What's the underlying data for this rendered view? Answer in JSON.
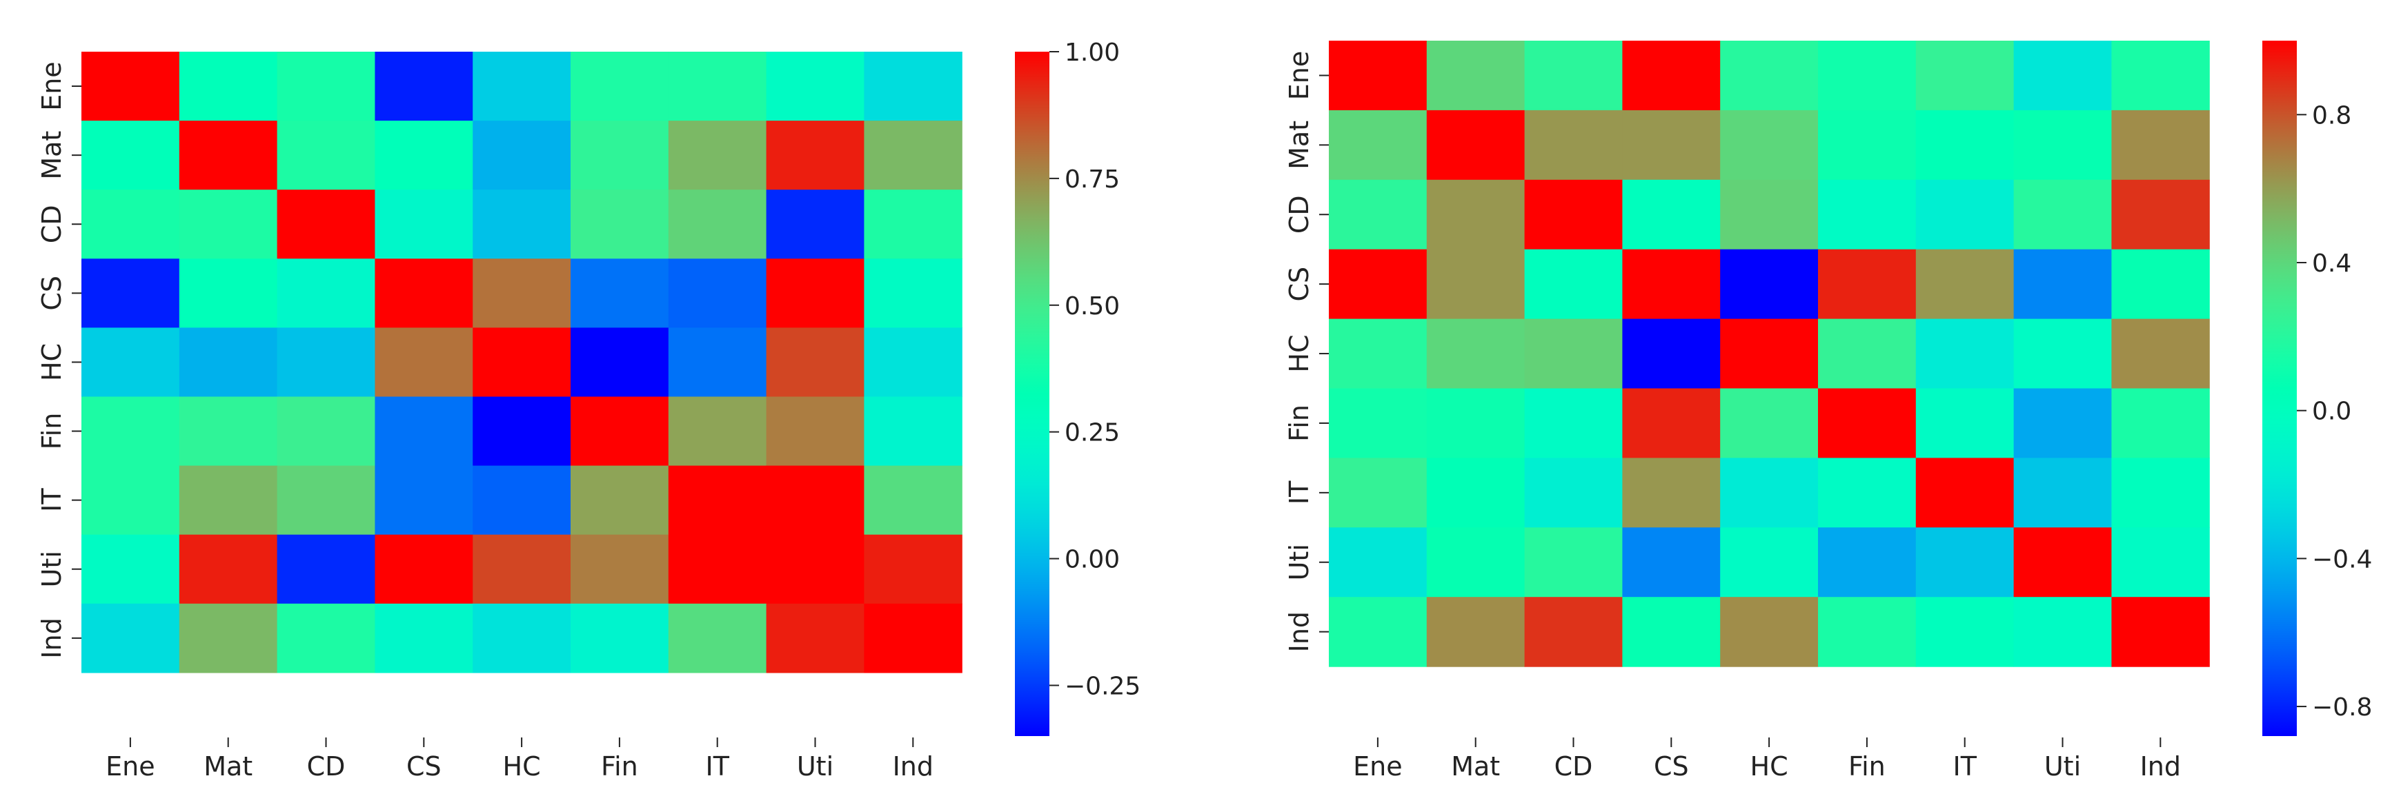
{
  "chart_data": [
    {
      "type": "heatmap",
      "title": "",
      "xlabel": "",
      "ylabel": "",
      "colormap": "rainbow",
      "vmin": -0.35,
      "vmax": 1.0,
      "x_labels": [
        "Ene",
        "Mat",
        "CD",
        "CS",
        "HC",
        "Fin",
        "IT",
        "Uti",
        "Ind"
      ],
      "y_labels": [
        "Ene",
        "Mat",
        "CD",
        "CS",
        "HC",
        "Fin",
        "IT",
        "Uti",
        "Ind"
      ],
      "colorbar_ticks": [
        1.0,
        0.75,
        0.5,
        0.25,
        0.0,
        -0.25
      ],
      "colorbar_tick_labels": [
        "1.00",
        "0.75",
        "0.50",
        "0.25",
        "0.00",
        "−0.25"
      ],
      "values": [
        [
          1.0,
          0.3,
          0.38,
          -0.3,
          0.05,
          0.4,
          0.4,
          0.25,
          0.1
        ],
        [
          0.3,
          1.0,
          0.4,
          0.3,
          -0.02,
          0.45,
          0.65,
          0.95,
          0.65
        ],
        [
          0.38,
          0.4,
          1.0,
          0.22,
          0.02,
          0.48,
          0.58,
          -0.28,
          0.4
        ],
        [
          -0.3,
          0.3,
          0.22,
          1.0,
          0.8,
          -0.15,
          -0.18,
          1.0,
          0.25
        ],
        [
          0.05,
          -0.02,
          0.02,
          0.8,
          1.0,
          -0.35,
          -0.15,
          0.88,
          0.12
        ],
        [
          0.4,
          0.45,
          0.48,
          -0.15,
          -0.35,
          1.0,
          0.7,
          0.78,
          0.2
        ],
        [
          0.4,
          0.65,
          0.58,
          -0.15,
          -0.18,
          0.7,
          1.0,
          1.0,
          0.55
        ],
        [
          0.25,
          0.95,
          -0.28,
          1.0,
          0.88,
          0.78,
          1.0,
          1.0,
          0.95
        ],
        [
          0.1,
          0.65,
          0.4,
          0.22,
          0.12,
          0.2,
          0.55,
          0.95,
          1.0
        ]
      ]
    },
    {
      "type": "heatmap",
      "title": "",
      "xlabel": "",
      "ylabel": "",
      "colormap": "rainbow",
      "vmin": -0.88,
      "vmax": 1.0,
      "x_labels": [
        "Ene",
        "Mat",
        "CD",
        "CS",
        "HC",
        "Fin",
        "IT",
        "Uti",
        "Ind"
      ],
      "y_labels": [
        "Ene",
        "Mat",
        "CD",
        "CS",
        "HC",
        "Fin",
        "IT",
        "Uti",
        "Ind"
      ],
      "colorbar_ticks": [
        0.8,
        0.4,
        0.0,
        -0.4,
        -0.8
      ],
      "colorbar_tick_labels": [
        "0.8",
        "0.4",
        "0.0",
        "−0.4",
        "−0.8"
      ],
      "values": [
        [
          1.0,
          0.4,
          0.22,
          1.0,
          0.2,
          0.12,
          0.25,
          -0.2,
          0.15
        ],
        [
          0.4,
          1.0,
          0.62,
          0.62,
          0.4,
          0.1,
          0.05,
          0.08,
          0.65
        ],
        [
          0.22,
          0.62,
          1.0,
          0.0,
          0.42,
          -0.05,
          -0.15,
          0.2,
          0.88
        ],
        [
          1.0,
          0.62,
          0.0,
          1.0,
          -0.88,
          0.92,
          0.62,
          -0.55,
          0.08
        ],
        [
          0.2,
          0.4,
          0.42,
          -0.88,
          1.0,
          0.25,
          -0.18,
          -0.05,
          0.65
        ],
        [
          0.12,
          0.1,
          -0.05,
          0.92,
          0.25,
          1.0,
          -0.05,
          -0.45,
          0.15
        ],
        [
          0.25,
          0.05,
          -0.15,
          0.62,
          -0.18,
          -0.05,
          1.0,
          -0.35,
          0.0
        ],
        [
          -0.2,
          0.08,
          0.2,
          -0.55,
          -0.05,
          -0.45,
          -0.35,
          1.0,
          -0.05
        ],
        [
          0.15,
          0.65,
          0.88,
          0.08,
          0.65,
          0.15,
          0.0,
          -0.05,
          1.0
        ]
      ]
    }
  ]
}
